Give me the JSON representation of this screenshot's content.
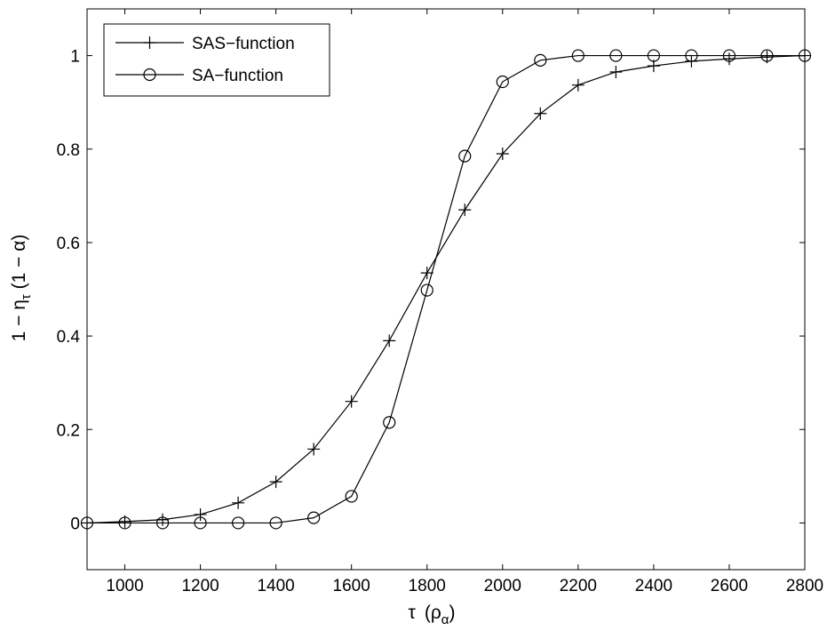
{
  "chart_data": {
    "type": "line",
    "xlabel": "τ (ρα)",
    "ylabel": "1 − ητ (1 − α)",
    "xlim": [
      900,
      2800
    ],
    "ylim": [
      -0.1,
      1.1
    ],
    "x_ticks": [
      "1000",
      "1200",
      "1400",
      "1600",
      "1800",
      "2000",
      "2200",
      "2400",
      "2600",
      "2800"
    ],
    "y_ticks": [
      "0",
      "0.2",
      "0.4",
      "0.6",
      "0.8",
      "1"
    ],
    "grid": false,
    "legend_position": "top-left",
    "series": [
      {
        "name": "SAS−function",
        "marker": "plus",
        "x": [
          900,
          1000,
          1100,
          1200,
          1300,
          1400,
          1500,
          1600,
          1700,
          1800,
          1900,
          2000,
          2100,
          2200,
          2300,
          2400,
          2500,
          2600,
          2700,
          2800
        ],
        "values": [
          0.0,
          0.003,
          0.007,
          0.018,
          0.043,
          0.088,
          0.158,
          0.26,
          0.39,
          0.535,
          0.67,
          0.79,
          0.876,
          0.937,
          0.965,
          0.978,
          0.988,
          0.993,
          0.997,
          1.0
        ]
      },
      {
        "name": "SA−function",
        "marker": "circle",
        "x": [
          900,
          1000,
          1100,
          1200,
          1300,
          1400,
          1500,
          1600,
          1700,
          1800,
          1900,
          2000,
          2100,
          2200,
          2300,
          2400,
          2500,
          2600,
          2700,
          2800
        ],
        "values": [
          0.0,
          0.0,
          0.0,
          0.0,
          0.0,
          0.0,
          0.011,
          0.057,
          0.215,
          0.498,
          0.785,
          0.944,
          0.99,
          1.0,
          1.0,
          1.0,
          1.0,
          1.0,
          1.0,
          1.0
        ]
      }
    ]
  }
}
